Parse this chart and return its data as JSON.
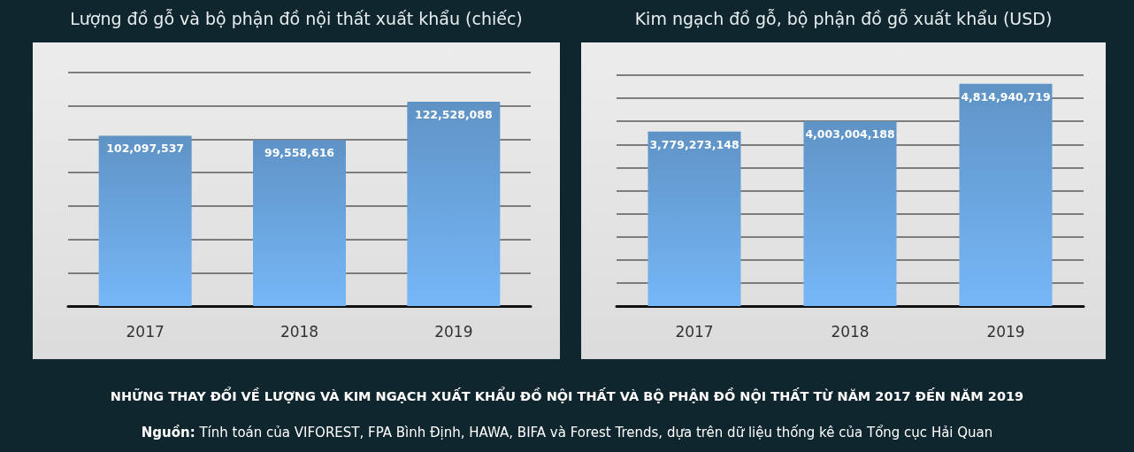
{
  "chart_data": [
    {
      "type": "bar",
      "title": "Lượng đồ gỗ và bộ phận đồ nội thất xuất khẩu (chiếc)",
      "categories": [
        "2017",
        "2018",
        "2019"
      ],
      "values": [
        102097537,
        99558616,
        122528088
      ],
      "value_labels": [
        "102,097,537",
        "99,558,616",
        "122,528,088"
      ],
      "color": "#5f93c6",
      "grid": "y",
      "tick_labels": "x",
      "annotations": [
        "NHỮNG THAY ĐỔI VỀ LƯỢNG VÀ KIM NGẠCH XUẤT KHẨU ĐỒ NỘI THẤT VÀ BỘ PHẬN ĐỒ NỘI THẤT TỪ NĂM 2017 ĐẾN NĂM 2019",
        "Nguồn: Tính toán của VIFOREST, FPA Bình Định, HAWA, BIFA và Forest Trends, dựa trên dữ liệu thống kê của Tổng cục Hải Quan"
      ]
    },
    {
      "type": "bar",
      "title": "Kim ngạch đồ gỗ, bộ phận đồ gỗ xuất khẩu (USD)",
      "categories": [
        "2017",
        "2018",
        "2019"
      ],
      "values": [
        3779273148,
        4003004188,
        4814940719
      ],
      "value_labels": [
        "3,779,273,148",
        "4,003,004,188",
        "4,814,940,719"
      ],
      "color": "#5f93c6",
      "grid": "y",
      "tick_labels": "x"
    }
  ]
}
